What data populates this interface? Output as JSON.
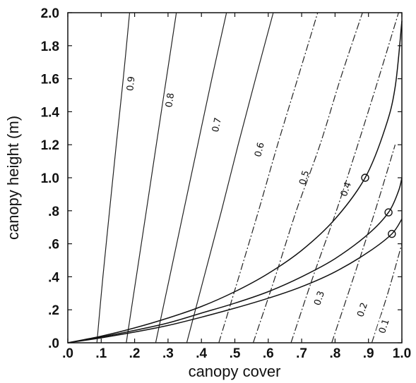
{
  "chart_data": {
    "type": "line",
    "xlabel": "canopy cover",
    "ylabel": "canopy height (m)",
    "xlim": [
      0.0,
      1.0
    ],
    "ylim": [
      0.0,
      2.0
    ],
    "x_ticks": [
      {
        "value": 0.0,
        "label": ".0"
      },
      {
        "value": 0.1,
        "label": ".1"
      },
      {
        "value": 0.2,
        "label": ".2"
      },
      {
        "value": 0.3,
        "label": ".3"
      },
      {
        "value": 0.4,
        "label": ".4"
      },
      {
        "value": 0.5,
        "label": ".5"
      },
      {
        "value": 0.6,
        "label": ".6"
      },
      {
        "value": 0.7,
        "label": ".7"
      },
      {
        "value": 0.8,
        "label": ".8"
      },
      {
        "value": 0.9,
        "label": ".9"
      },
      {
        "value": 1.0,
        "label": "1.0"
      }
    ],
    "y_ticks": [
      {
        "value": 0.0,
        "label": ".0"
      },
      {
        "value": 0.2,
        "label": ".2"
      },
      {
        "value": 0.4,
        "label": ".4"
      },
      {
        "value": 0.6,
        "label": ".6"
      },
      {
        "value": 0.8,
        "label": ".8"
      },
      {
        "value": 1.0,
        "label": "1.0"
      },
      {
        "value": 1.2,
        "label": "1.2"
      },
      {
        "value": 1.4,
        "label": "1.4"
      },
      {
        "value": 1.6,
        "label": "1.6"
      },
      {
        "value": 1.8,
        "label": "1.8"
      },
      {
        "value": 2.0,
        "label": "2.0"
      }
    ],
    "grid": false,
    "contours": [
      {
        "label": "0.9",
        "dashed": false,
        "label_at": [
          0.189,
          1.57
        ],
        "points": [
          [
            0.087,
            0
          ],
          [
            0.105,
            0.4
          ],
          [
            0.125,
            0.8
          ],
          [
            0.145,
            1.2
          ],
          [
            0.166,
            1.6
          ],
          [
            0.185,
            2.0
          ]
        ]
      },
      {
        "label": "0.8",
        "dashed": false,
        "label_at": [
          0.306,
          1.47
        ],
        "points": [
          [
            0.175,
            0
          ],
          [
            0.205,
            0.4
          ],
          [
            0.235,
            0.8
          ],
          [
            0.265,
            1.2
          ],
          [
            0.295,
            1.6
          ],
          [
            0.325,
            2.0
          ]
        ]
      },
      {
        "label": "0.7",
        "dashed": false,
        "label_at": [
          0.446,
          1.32
        ],
        "points": [
          [
            0.263,
            0
          ],
          [
            0.305,
            0.4
          ],
          [
            0.347,
            0.8
          ],
          [
            0.389,
            1.2
          ],
          [
            0.431,
            1.6
          ],
          [
            0.475,
            2.0
          ]
        ]
      },
      {
        "label": "0.6",
        "dashed": false,
        "label_at": [
          0.574,
          1.17
        ],
        "points": [
          [
            0.356,
            0
          ],
          [
            0.408,
            0.4
          ],
          [
            0.46,
            0.8
          ],
          [
            0.51,
            1.2
          ],
          [
            0.562,
            1.6
          ],
          [
            0.615,
            2.0
          ]
        ]
      },
      {
        "label": "0.5",
        "dashed": true,
        "label_at": [
          0.708,
          1.0
        ],
        "points": [
          [
            0.452,
            0
          ],
          [
            0.512,
            0.4
          ],
          [
            0.571,
            0.8
          ],
          [
            0.628,
            1.2
          ],
          [
            0.688,
            1.6
          ],
          [
            0.748,
            2.0
          ]
        ]
      },
      {
        "label": "0.4",
        "dashed": true,
        "label_at": [
          0.833,
          0.93
        ],
        "points": [
          [
            0.555,
            0
          ],
          [
            0.621,
            0.4
          ],
          [
            0.684,
            0.8
          ],
          [
            0.755,
            1.2
          ],
          [
            0.816,
            1.6
          ],
          [
            0.882,
            2.0
          ]
        ]
      },
      {
        "label": "0.3",
        "dashed": true,
        "label_at": [
          0.753,
          0.27
        ],
        "points": [
          [
            0.668,
            0
          ],
          [
            0.734,
            0.4
          ],
          [
            0.804,
            0.8
          ],
          [
            0.868,
            1.2
          ],
          [
            0.93,
            1.6
          ],
          [
            0.99,
            2.0
          ]
        ]
      },
      {
        "label": "0.2",
        "dashed": true,
        "label_at": [
          0.882,
          0.2
        ],
        "points": [
          [
            0.79,
            0
          ],
          [
            0.856,
            0.4
          ],
          [
            0.92,
            0.8
          ],
          [
            0.98,
            1.2
          ]
        ]
      },
      {
        "label": "0.1",
        "dashed": true,
        "label_at": [
          0.947,
          0.1
        ],
        "points": [
          [
            0.91,
            0
          ],
          [
            0.958,
            0.3
          ],
          [
            1.0,
            0.6
          ]
        ]
      }
    ],
    "series": [
      {
        "marker_at": [
          0.89,
          1.0
        ],
        "points": [
          [
            0,
            0
          ],
          [
            0.1,
            0.04
          ],
          [
            0.2,
            0.09
          ],
          [
            0.3,
            0.15
          ],
          [
            0.4,
            0.22
          ],
          [
            0.5,
            0.31
          ],
          [
            0.6,
            0.42
          ],
          [
            0.7,
            0.56
          ],
          [
            0.8,
            0.75
          ],
          [
            0.89,
            1.0
          ],
          [
            0.95,
            1.3
          ],
          [
            0.98,
            1.55
          ],
          [
            1.0,
            1.95
          ]
        ]
      },
      {
        "marker_at": [
          0.96,
          0.79
        ],
        "points": [
          [
            0,
            0
          ],
          [
            0.1,
            0.035
          ],
          [
            0.2,
            0.075
          ],
          [
            0.3,
            0.12
          ],
          [
            0.4,
            0.18
          ],
          [
            0.5,
            0.24
          ],
          [
            0.6,
            0.31
          ],
          [
            0.7,
            0.4
          ],
          [
            0.8,
            0.51
          ],
          [
            0.9,
            0.66
          ],
          [
            0.96,
            0.79
          ],
          [
            0.99,
            0.92
          ],
          [
            1.0,
            1.0
          ]
        ]
      },
      {
        "marker_at": [
          0.97,
          0.66
        ],
        "points": [
          [
            0,
            0
          ],
          [
            0.1,
            0.03
          ],
          [
            0.2,
            0.065
          ],
          [
            0.3,
            0.105
          ],
          [
            0.4,
            0.155
          ],
          [
            0.5,
            0.21
          ],
          [
            0.6,
            0.27
          ],
          [
            0.7,
            0.34
          ],
          [
            0.8,
            0.43
          ],
          [
            0.9,
            0.55
          ],
          [
            0.97,
            0.66
          ],
          [
            1.0,
            0.75
          ]
        ]
      }
    ]
  }
}
